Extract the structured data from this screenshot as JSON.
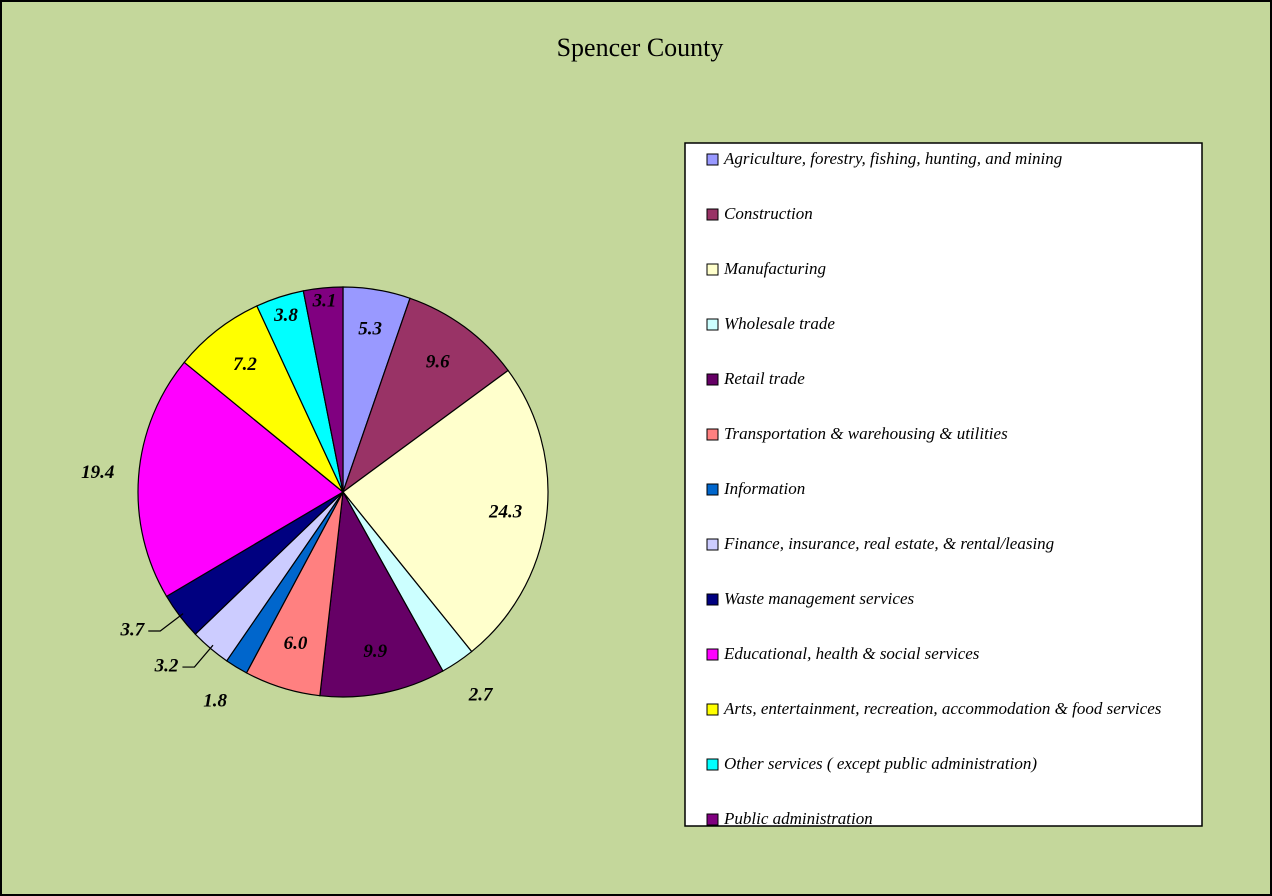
{
  "chart_data": {
    "type": "pie",
    "title": "Spencer County",
    "categories": [
      "Agriculture, forestry, fishing, hunting, and mining",
      "Construction",
      "Manufacturing",
      "Wholesale trade",
      "Retail trade",
      "Transportation & warehousing & utilities",
      "Information",
      "Finance, insurance, real estate, & rental/leasing",
      "Waste management services",
      "Educational, health & social services",
      "Arts, entertainment, recreation, accommodation & food services",
      "Other services ( except public administration)",
      "Public administration"
    ],
    "values": [
      5.3,
      9.6,
      24.3,
      2.7,
      9.9,
      6.0,
      1.8,
      3.2,
      3.7,
      19.4,
      7.2,
      3.8,
      3.1
    ],
    "value_labels": [
      "5.3",
      "9.6",
      "24.3",
      "2.7",
      "9.9",
      "6.0",
      "1.8",
      "3.2",
      "3.7",
      "19.4",
      "7.2",
      "3.8",
      "3.1"
    ],
    "colors": [
      "#9999ff",
      "#993366",
      "#ffffcc",
      "#ccffff",
      "#660066",
      "#ff8080",
      "#0066cc",
      "#ccccff",
      "#000080",
      "#ff00ff",
      "#ffff00",
      "#00ffff",
      "#800080"
    ]
  }
}
